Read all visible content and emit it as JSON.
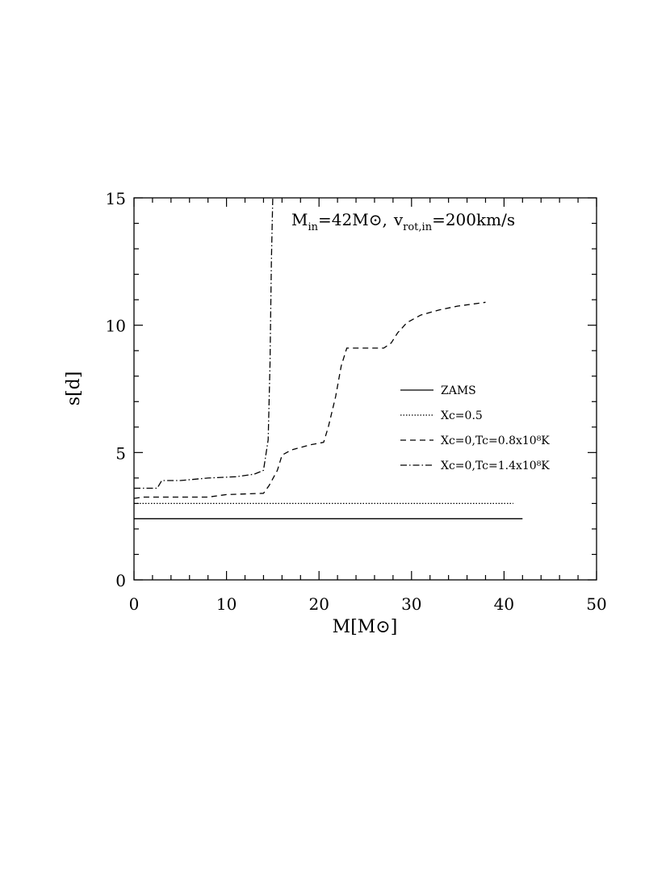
{
  "chart_data": {
    "type": "line",
    "title": "",
    "xlabel": "M[M⊙]",
    "ylabel": "s[d]",
    "xlim": [
      0,
      50
    ],
    "ylim": [
      0,
      15
    ],
    "xticks": [
      0,
      10,
      20,
      30,
      40,
      50
    ],
    "yticks": [
      0,
      5,
      10,
      15
    ],
    "annotation": {
      "min_label": "M",
      "min_sub": "in",
      "min_value": "=42M⊙,",
      "v_label": "v",
      "v_sub": "rot,in",
      "v_value": "=200km/s"
    },
    "legend_position": "right-middle",
    "series": [
      {
        "name": "ZAMS",
        "dash": "solid",
        "x": [
          0,
          42
        ],
        "y": [
          2.4,
          2.4
        ]
      },
      {
        "name": "Xc=0.5",
        "dash": "dotted",
        "x": [
          0,
          41
        ],
        "y": [
          3.0,
          3.0
        ]
      },
      {
        "name": "Xc=0,Tc=0.8x10⁸K",
        "dash": "dashed",
        "x": [
          0,
          1,
          8,
          10,
          14,
          14.6,
          15.5,
          16,
          17,
          19,
          20.5,
          21,
          21.8,
          22.4,
          23,
          25,
          27,
          27.8,
          28.5,
          29.5,
          31,
          33,
          35,
          38
        ],
        "y": [
          3.2,
          3.25,
          3.25,
          3.35,
          3.4,
          3.7,
          4.3,
          4.9,
          5.1,
          5.3,
          5.4,
          6.0,
          7.2,
          8.4,
          9.1,
          9.1,
          9.1,
          9.3,
          9.7,
          10.1,
          10.4,
          10.6,
          10.75,
          10.9
        ]
      },
      {
        "name": "Xc=0,Tc=1.4x10⁸K",
        "dash": "dashdot",
        "x": [
          0,
          2.5,
          3,
          5,
          8,
          11,
          13,
          14,
          14.5,
          14.7,
          14.85,
          15.0
        ],
        "y": [
          3.6,
          3.6,
          3.9,
          3.9,
          4.0,
          4.05,
          4.15,
          4.3,
          5.5,
          8.5,
          12.5,
          15.0
        ]
      }
    ]
  }
}
